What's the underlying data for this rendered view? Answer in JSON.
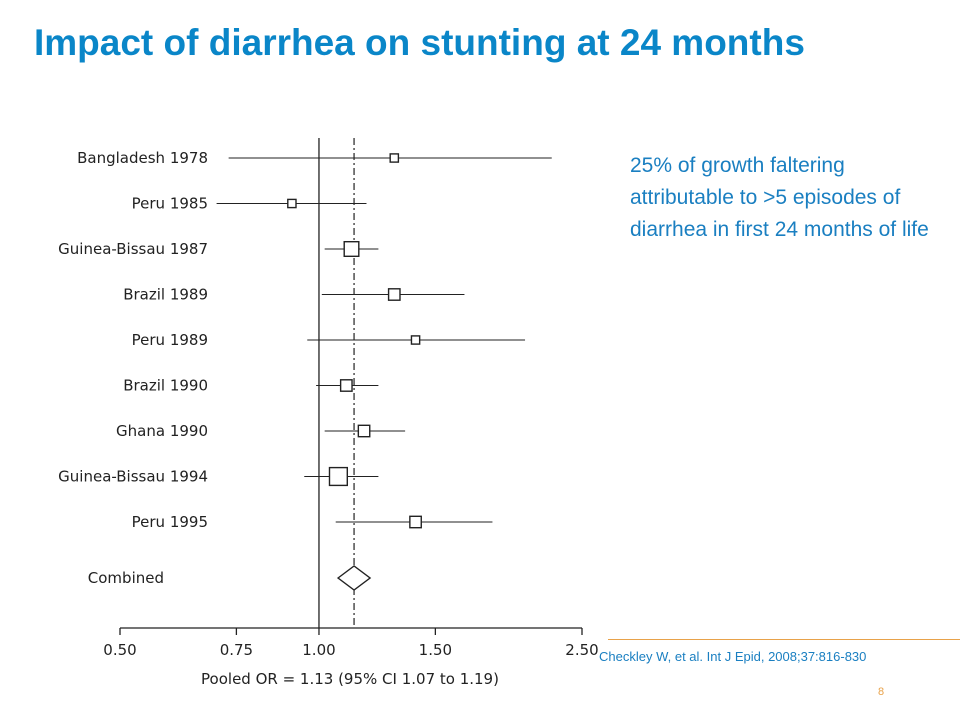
{
  "page": {
    "title": "Impact of diarrhea on stunting at 24 months",
    "callout": "25% of growth faltering attributable to >5 episodes of diarrhea in first 24 months of life",
    "citation": "Checkley W, et al. Int J Epid, 2008;37:816-830",
    "page_number": "8"
  },
  "colors": {
    "title": "#0a86c8",
    "callout": "#1a7fc1",
    "accent": "#e8a24a",
    "ink": "#222222"
  },
  "chart_data": {
    "type": "forest",
    "x_scale": "log",
    "xlim": [
      0.5,
      2.5
    ],
    "x_ticks": [
      0.5,
      0.75,
      1.0,
      1.5,
      2.5
    ],
    "x_tick_labels": [
      "0.50",
      "0.75",
      "1.00",
      "1.50",
      "2.50"
    ],
    "xlabel": "Pooled OR = 1.13 (95% CI 1.07 to 1.19)",
    "reference_line": 1.0,
    "pooled_line": 1.13,
    "studies": [
      {
        "label": "Bangladesh 1978",
        "or": 1.3,
        "lo": 0.73,
        "hi": 2.25,
        "weight": 1
      },
      {
        "label": "Peru 1985",
        "or": 0.91,
        "lo": 0.7,
        "hi": 1.18,
        "weight": 1
      },
      {
        "label": "Guinea-Bissau 1987",
        "or": 1.12,
        "lo": 1.02,
        "hi": 1.23,
        "weight": 3
      },
      {
        "label": "Brazil 1989",
        "or": 1.3,
        "lo": 1.01,
        "hi": 1.66,
        "weight": 2
      },
      {
        "label": "Peru 1989",
        "or": 1.4,
        "lo": 0.96,
        "hi": 2.05,
        "weight": 1
      },
      {
        "label": "Brazil 1990",
        "or": 1.1,
        "lo": 0.99,
        "hi": 1.23,
        "weight": 2
      },
      {
        "label": "Ghana 1990",
        "or": 1.17,
        "lo": 1.02,
        "hi": 1.35,
        "weight": 2
      },
      {
        "label": "Guinea-Bissau 1994",
        "or": 1.07,
        "lo": 0.95,
        "hi": 1.23,
        "weight": 4
      },
      {
        "label": "Peru 1995",
        "or": 1.4,
        "lo": 1.06,
        "hi": 1.83,
        "weight": 2
      }
    ],
    "combined": {
      "label": "Combined",
      "or": 1.13,
      "lo": 1.07,
      "hi": 1.19
    }
  }
}
